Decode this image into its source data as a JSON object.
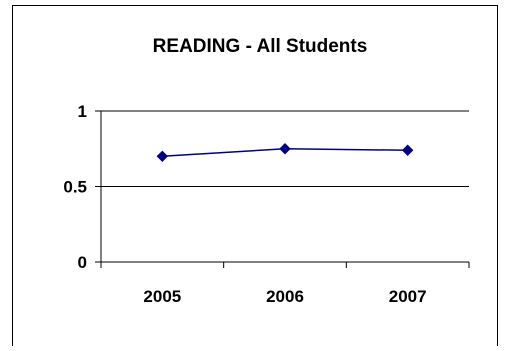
{
  "chart_data": {
    "type": "line",
    "title": "READING - All Students",
    "categories": [
      "2005",
      "2006",
      "2007"
    ],
    "series": [
      {
        "values": [
          0.7,
          0.75,
          0.74
        ]
      }
    ],
    "ylim": [
      0,
      1
    ],
    "yticks": [
      "0",
      "0.5",
      "1"
    ],
    "grid": true,
    "legend": "none"
  },
  "colors": {
    "line": "#000080",
    "marker": "#000080",
    "grid": "#000000",
    "axis": "#000000",
    "border": "#000000"
  }
}
